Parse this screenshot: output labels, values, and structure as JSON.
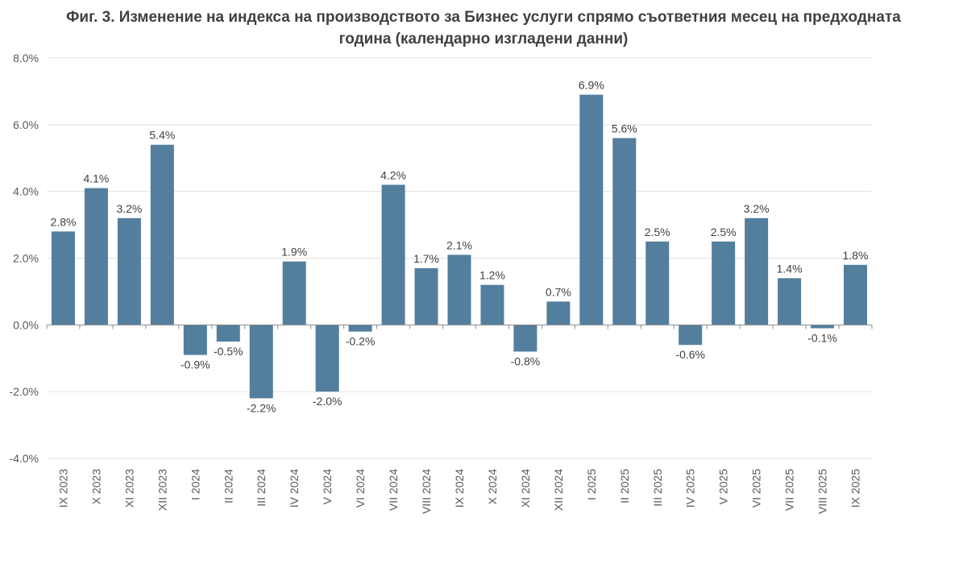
{
  "chart_data": {
    "type": "bar",
    "title_line1": "Фиг. 3. Изменение на индекса на производството за Бизнес услуги спрямо съответния месец на предходната",
    "title_line2": "година (календарно изгладени данни)",
    "categories": [
      "IX 2023",
      "X 2023",
      "XI 2023",
      "XII 2023",
      "I 2024",
      "II 2024",
      "III 2024",
      "IV 2024",
      "V 2024",
      "VI 2024",
      "VII 2024",
      "VIII 2024",
      "IX 2024",
      "X 2024",
      "XI 2024",
      "XII 2024",
      "I 2025",
      "II 2025",
      "III 2025",
      "IV 2025",
      "V 2025",
      "VI 2025",
      "VII 2025",
      "VIII 2025",
      "IX 2025"
    ],
    "values": [
      2.8,
      4.1,
      3.2,
      5.4,
      -0.9,
      -0.5,
      -2.2,
      1.9,
      -2.0,
      -0.2,
      4.2,
      1.7,
      2.1,
      1.2,
      -0.8,
      0.7,
      6.9,
      5.6,
      2.5,
      -0.6,
      2.5,
      3.2,
      1.4,
      -0.1,
      1.8
    ],
    "value_labels": [
      "2.8%",
      "4.1%",
      "3.2%",
      "5.4%",
      "-0.9%",
      "-0.5%",
      "-2.2%",
      "1.9%",
      "-2.0%",
      "-0.2%",
      "4.2%",
      "1.7%",
      "2.1%",
      "1.2%",
      "-0.8%",
      "0.7%",
      "6.9%",
      "5.6%",
      "2.5%",
      "-0.6%",
      "2.5%",
      "3.2%",
      "1.4%",
      "-0.1%",
      "1.8%"
    ],
    "ylim": [
      -4,
      8
    ],
    "yticks": [
      -4,
      -2,
      0,
      2,
      4,
      6,
      8
    ],
    "ytick_labels": [
      "-4.0%",
      "-2.0%",
      "0.0%",
      "2.0%",
      "4.0%",
      "6.0%",
      "8.0%"
    ],
    "xlabel": "",
    "ylabel": "",
    "grid": true,
    "bar_color": "#537e9e"
  }
}
